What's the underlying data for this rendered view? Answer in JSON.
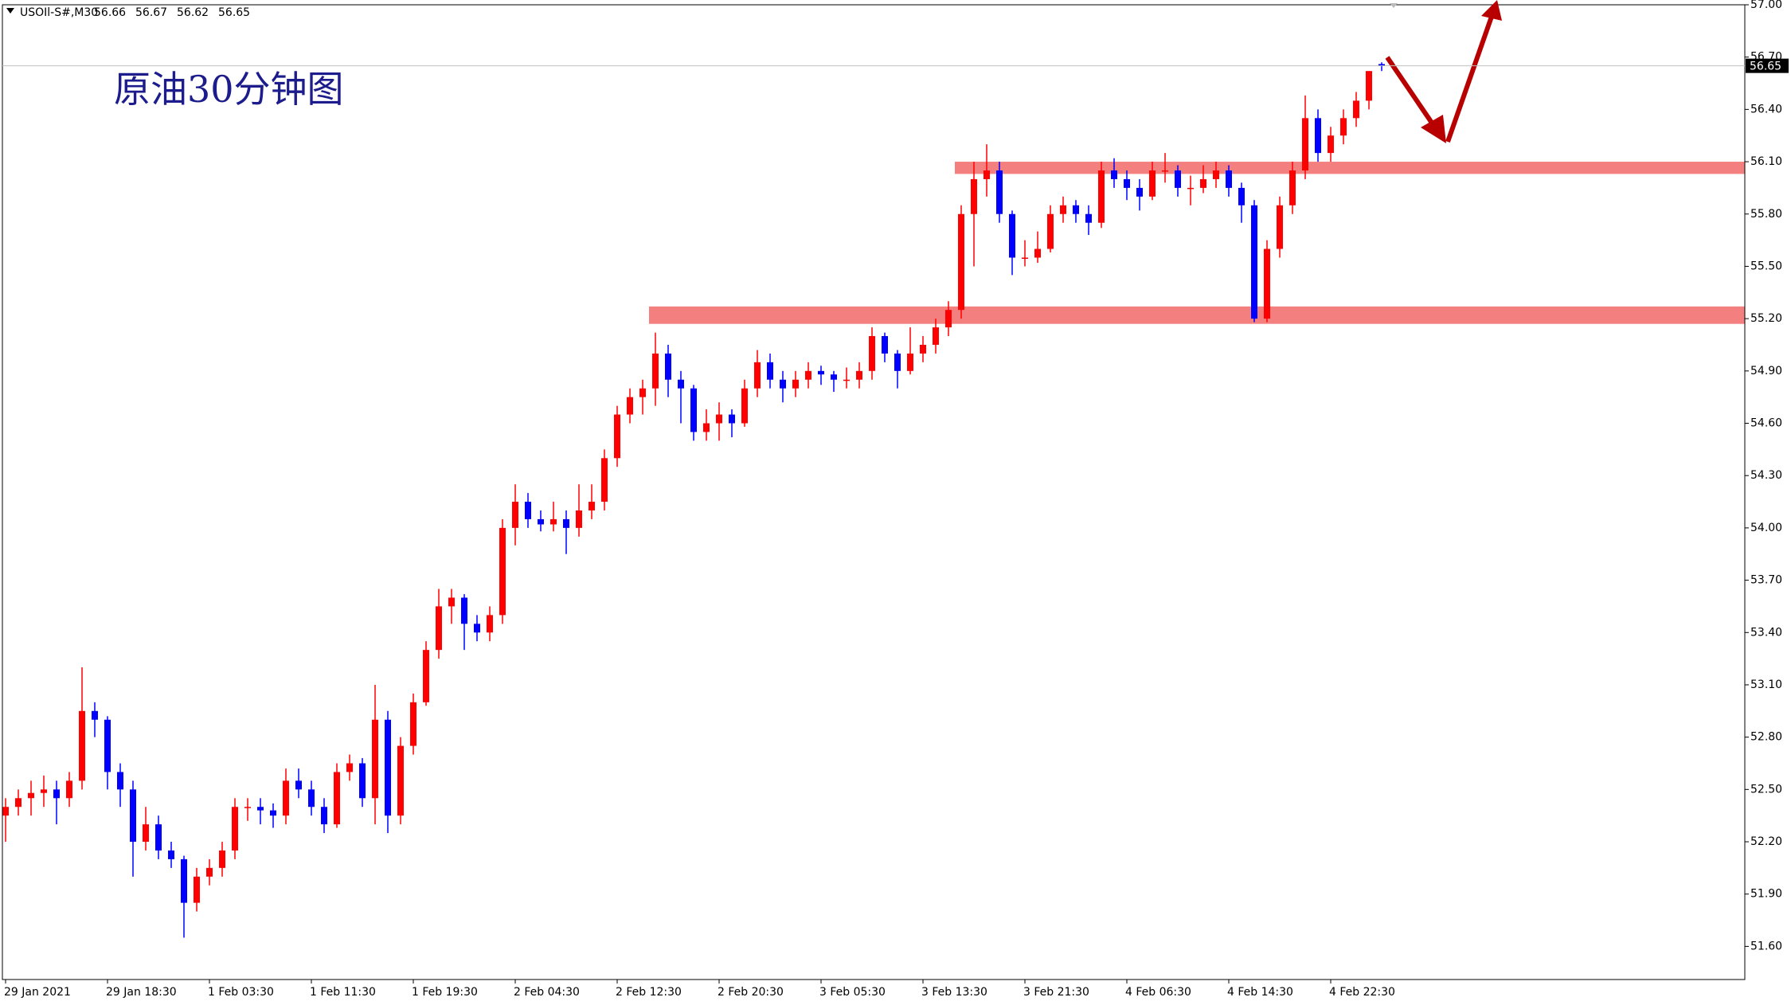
{
  "chart_data": {
    "type": "candlestick",
    "symbol": "USOIl-S#,M30",
    "header_values": [
      56.66,
      56.67,
      56.62,
      56.65
    ],
    "annotation": "原油30分钟图",
    "last_price": 56.65,
    "up_color": "#ff0000",
    "down_color": "#0000ff",
    "zone_color": "#f47f7f",
    "ylim": [
      51.41,
      57.0
    ],
    "yticks": [
      {
        "value": 51.6,
        "label": "51.60"
      },
      {
        "value": 51.9,
        "label": "51.90"
      },
      {
        "value": 52.2,
        "label": "52.20"
      },
      {
        "value": 52.5,
        "label": "52.50"
      },
      {
        "value": 52.8,
        "label": "52.80"
      },
      {
        "value": 53.1,
        "label": "53.10"
      },
      {
        "value": 53.4,
        "label": "53.40"
      },
      {
        "value": 53.7,
        "label": "53.70"
      },
      {
        "value": 54.0,
        "label": "54.00"
      },
      {
        "value": 54.3,
        "label": "54.30"
      },
      {
        "value": 54.6,
        "label": "54.60"
      },
      {
        "value": 54.9,
        "label": "54.90"
      },
      {
        "value": 55.2,
        "label": "55.20"
      },
      {
        "value": 55.5,
        "label": "55.50"
      },
      {
        "value": 55.8,
        "label": "55.80"
      },
      {
        "value": 56.1,
        "label": "56.10"
      },
      {
        "value": 56.4,
        "label": "56.40"
      },
      {
        "value": 56.7,
        "label": "56.70"
      },
      {
        "value": 57.0,
        "label": "57.00"
      }
    ],
    "zones": [
      {
        "low": 56.03,
        "high": 56.1,
        "start_index": 75
      },
      {
        "low": 55.17,
        "high": 55.27,
        "start_index": 51
      }
    ],
    "categories": [
      "29 Jan 2021",
      null,
      null,
      null,
      null,
      null,
      null,
      null,
      "29 Jan 18:30",
      null,
      null,
      null,
      null,
      null,
      null,
      null,
      "1 Feb 03:30",
      null,
      null,
      null,
      null,
      null,
      null,
      null,
      "1 Feb 11:30",
      null,
      null,
      null,
      null,
      null,
      null,
      null,
      "1 Feb 19:30",
      null,
      null,
      null,
      null,
      null,
      null,
      null,
      "2 Feb 04:30",
      null,
      null,
      null,
      null,
      null,
      null,
      null,
      "2 Feb 12:30",
      null,
      null,
      null,
      null,
      null,
      null,
      null,
      "2 Feb 20:30",
      null,
      null,
      null,
      null,
      null,
      null,
      null,
      "3 Feb 05:30",
      null,
      null,
      null,
      null,
      null,
      null,
      null,
      "3 Feb 13:30",
      null,
      null,
      null,
      null,
      null,
      null,
      null,
      "3 Feb 21:30",
      null,
      null,
      null,
      null,
      null,
      null,
      null,
      "4 Feb 06:30",
      null,
      null,
      null,
      null,
      null,
      null,
      null,
      "4 Feb 14:30",
      null,
      null,
      null,
      null,
      null,
      null,
      null,
      "4 Feb 22:30",
      null,
      null,
      null,
      null
    ],
    "ohlc": [
      [
        52.35,
        52.45,
        52.2,
        52.4
      ],
      [
        52.4,
        52.5,
        52.35,
        52.45
      ],
      [
        52.45,
        52.55,
        52.35,
        52.48
      ],
      [
        52.48,
        52.58,
        52.4,
        52.5
      ],
      [
        52.5,
        52.55,
        52.3,
        52.45
      ],
      [
        52.45,
        52.6,
        52.4,
        52.55
      ],
      [
        52.55,
        53.2,
        52.5,
        52.95
      ],
      [
        52.95,
        53.0,
        52.8,
        52.9
      ],
      [
        52.9,
        52.92,
        52.5,
        52.6
      ],
      [
        52.6,
        52.65,
        52.4,
        52.5
      ],
      [
        52.5,
        52.55,
        52.0,
        52.2
      ],
      [
        52.2,
        52.4,
        52.15,
        52.3
      ],
      [
        52.3,
        52.35,
        52.1,
        52.15
      ],
      [
        52.15,
        52.2,
        52.05,
        52.1
      ],
      [
        52.1,
        52.12,
        51.65,
        51.85
      ],
      [
        51.85,
        52.05,
        51.8,
        52.0
      ],
      [
        52.0,
        52.1,
        51.95,
        52.05
      ],
      [
        52.05,
        52.2,
        52.0,
        52.15
      ],
      [
        52.15,
        52.45,
        52.1,
        52.4
      ],
      [
        52.4,
        52.45,
        52.32,
        52.4
      ],
      [
        52.4,
        52.45,
        52.3,
        52.38
      ],
      [
        52.38,
        52.42,
        52.28,
        52.35
      ],
      [
        52.35,
        52.62,
        52.3,
        52.55
      ],
      [
        52.55,
        52.62,
        52.45,
        52.5
      ],
      [
        52.5,
        52.55,
        52.35,
        52.4
      ],
      [
        52.4,
        52.45,
        52.25,
        52.3
      ],
      [
        52.3,
        52.65,
        52.28,
        52.6
      ],
      [
        52.6,
        52.7,
        52.55,
        52.65
      ],
      [
        52.65,
        52.68,
        52.4,
        52.45
      ],
      [
        52.45,
        53.1,
        52.3,
        52.9
      ],
      [
        52.9,
        52.95,
        52.25,
        52.35
      ],
      [
        52.35,
        52.8,
        52.3,
        52.75
      ],
      [
        52.75,
        53.05,
        52.7,
        53.0
      ],
      [
        53.0,
        53.35,
        52.98,
        53.3
      ],
      [
        53.3,
        53.65,
        53.25,
        53.55
      ],
      [
        53.55,
        53.65,
        53.45,
        53.6
      ],
      [
        53.6,
        53.62,
        53.3,
        53.45
      ],
      [
        53.45,
        53.5,
        53.35,
        53.4
      ],
      [
        53.4,
        53.55,
        53.35,
        53.5
      ],
      [
        53.5,
        54.05,
        53.45,
        54.0
      ],
      [
        54.0,
        54.25,
        53.9,
        54.15
      ],
      [
        54.15,
        54.2,
        54.0,
        54.05
      ],
      [
        54.05,
        54.1,
        53.98,
        54.02
      ],
      [
        54.02,
        54.15,
        53.98,
        54.05
      ],
      [
        54.05,
        54.1,
        53.85,
        54.0
      ],
      [
        54.0,
        54.25,
        53.95,
        54.1
      ],
      [
        54.1,
        54.25,
        54.05,
        54.15
      ],
      [
        54.15,
        54.45,
        54.1,
        54.4
      ],
      [
        54.4,
        54.7,
        54.35,
        54.65
      ],
      [
        54.65,
        54.8,
        54.6,
        54.75
      ],
      [
        54.75,
        54.85,
        54.65,
        54.8
      ],
      [
        54.8,
        55.12,
        54.7,
        55.0
      ],
      [
        55.0,
        55.05,
        54.75,
        54.85
      ],
      [
        54.85,
        54.9,
        54.6,
        54.8
      ],
      [
        54.8,
        54.82,
        54.5,
        54.55
      ],
      [
        54.55,
        54.68,
        54.5,
        54.6
      ],
      [
        54.6,
        54.72,
        54.5,
        54.65
      ],
      [
        54.65,
        54.68,
        54.52,
        54.6
      ],
      [
        54.6,
        54.85,
        54.58,
        54.8
      ],
      [
        54.8,
        55.02,
        54.75,
        54.95
      ],
      [
        54.95,
        55.0,
        54.8,
        54.85
      ],
      [
        54.85,
        54.9,
        54.72,
        54.8
      ],
      [
        54.8,
        54.9,
        54.75,
        54.85
      ],
      [
        54.85,
        54.95,
        54.8,
        54.9
      ],
      [
        54.9,
        54.93,
        54.82,
        54.88
      ],
      [
        54.88,
        54.9,
        54.78,
        54.85
      ],
      [
        54.85,
        54.92,
        54.8,
        54.85
      ],
      [
        54.85,
        54.95,
        54.8,
        54.9
      ],
      [
        54.9,
        55.15,
        54.85,
        55.1
      ],
      [
        55.1,
        55.12,
        54.95,
        55.0
      ],
      [
        55.0,
        55.02,
        54.8,
        54.9
      ],
      [
        54.9,
        55.15,
        54.88,
        55.0
      ],
      [
        55.0,
        55.1,
        54.95,
        55.05
      ],
      [
        55.05,
        55.2,
        55.0,
        55.15
      ],
      [
        55.15,
        55.3,
        55.1,
        55.25
      ],
      [
        55.25,
        55.85,
        55.2,
        55.8
      ],
      [
        55.8,
        56.1,
        55.5,
        56.0
      ],
      [
        56.0,
        56.2,
        55.9,
        56.05
      ],
      [
        56.05,
        56.1,
        55.75,
        55.8
      ],
      [
        55.8,
        55.82,
        55.45,
        55.55
      ],
      [
        55.55,
        55.65,
        55.5,
        55.55
      ],
      [
        55.55,
        55.7,
        55.52,
        55.6
      ],
      [
        55.6,
        55.85,
        55.58,
        55.8
      ],
      [
        55.8,
        55.9,
        55.75,
        55.85
      ],
      [
        55.85,
        55.88,
        55.75,
        55.8
      ],
      [
        55.8,
        55.85,
        55.68,
        55.75
      ],
      [
        55.75,
        56.1,
        55.72,
        56.05
      ],
      [
        56.05,
        56.12,
        55.95,
        56.0
      ],
      [
        56.0,
        56.05,
        55.88,
        55.95
      ],
      [
        55.95,
        56.0,
        55.82,
        55.9
      ],
      [
        55.9,
        56.1,
        55.88,
        56.05
      ],
      [
        56.05,
        56.15,
        55.98,
        56.05
      ],
      [
        56.05,
        56.08,
        55.9,
        55.95
      ],
      [
        55.95,
        56.02,
        55.85,
        55.95
      ],
      [
        55.95,
        56.08,
        55.92,
        56.0
      ],
      [
        56.0,
        56.1,
        55.95,
        56.05
      ],
      [
        56.05,
        56.08,
        55.9,
        55.95
      ],
      [
        55.95,
        55.98,
        55.75,
        55.85
      ],
      [
        55.85,
        55.88,
        55.18,
        55.2
      ],
      [
        55.2,
        55.65,
        55.18,
        55.6
      ],
      [
        55.6,
        55.9,
        55.55,
        55.85
      ],
      [
        55.85,
        56.1,
        55.8,
        56.05
      ],
      [
        56.05,
        56.48,
        56.0,
        56.35
      ],
      [
        56.35,
        56.4,
        56.1,
        56.15
      ],
      [
        56.15,
        56.3,
        56.1,
        56.25
      ],
      [
        56.25,
        56.4,
        56.2,
        56.35
      ],
      [
        56.35,
        56.5,
        56.3,
        56.45
      ],
      [
        56.45,
        56.62,
        56.4,
        56.62
      ],
      [
        56.66,
        56.67,
        56.62,
        56.65
      ]
    ]
  }
}
